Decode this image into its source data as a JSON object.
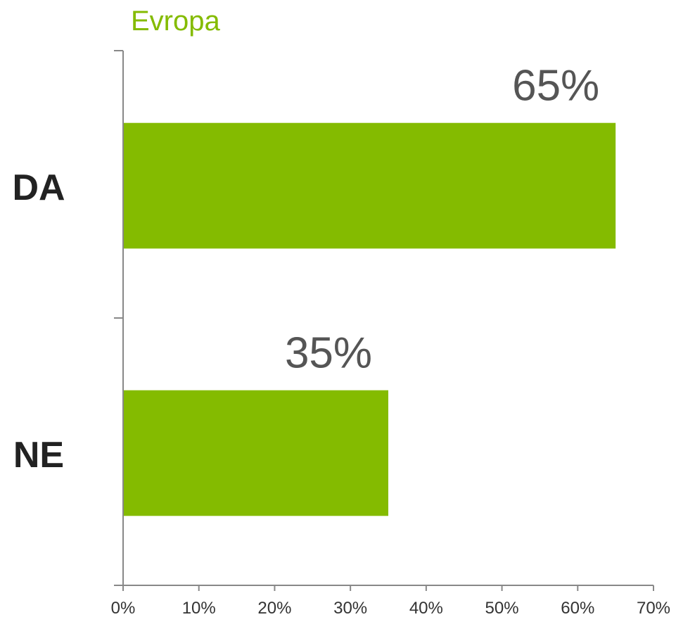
{
  "chart_data": {
    "type": "bar",
    "orientation": "horizontal",
    "series": [
      {
        "name": "Evropa",
        "values": [
          65,
          35
        ],
        "color": "#84bb00"
      }
    ],
    "categories": [
      "DA",
      "NE"
    ],
    "data_labels": [
      "65%",
      "35%"
    ],
    "x_ticks": [
      "0%",
      "10%",
      "20%",
      "30%",
      "40%",
      "50%",
      "60%",
      "70%"
    ],
    "xlim": [
      0,
      70
    ],
    "grid": false,
    "legend": "top-left",
    "colors": {
      "bar": "#84bb00",
      "title": "#84bb00",
      "axis": "#888888",
      "category_text": "#222222",
      "value_text": "#555555",
      "tick_text": "#333333"
    }
  }
}
